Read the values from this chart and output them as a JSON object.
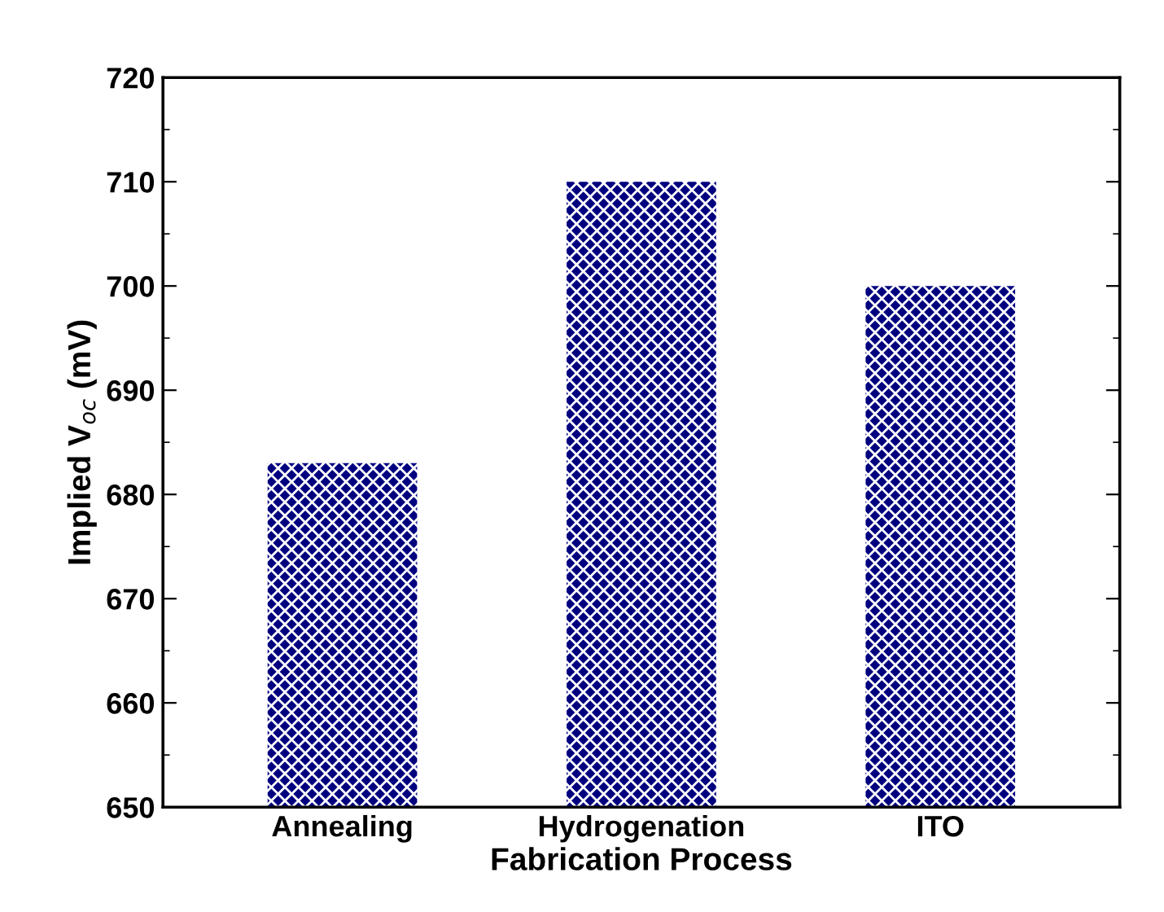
{
  "chart_data": {
    "type": "bar",
    "xlabel": "Fabrication Process",
    "ylabel": "Implied V$_{oc}$ (mV)",
    "categories": [
      "Annealing",
      "Hydrogenation",
      "ITO"
    ],
    "values": [
      683,
      710,
      700
    ],
    "color": "#00007f",
    "ylim": [
      650,
      720
    ],
    "yticks": [
      650,
      660,
      670,
      680,
      690,
      700,
      710,
      720
    ],
    "grid": false
  }
}
